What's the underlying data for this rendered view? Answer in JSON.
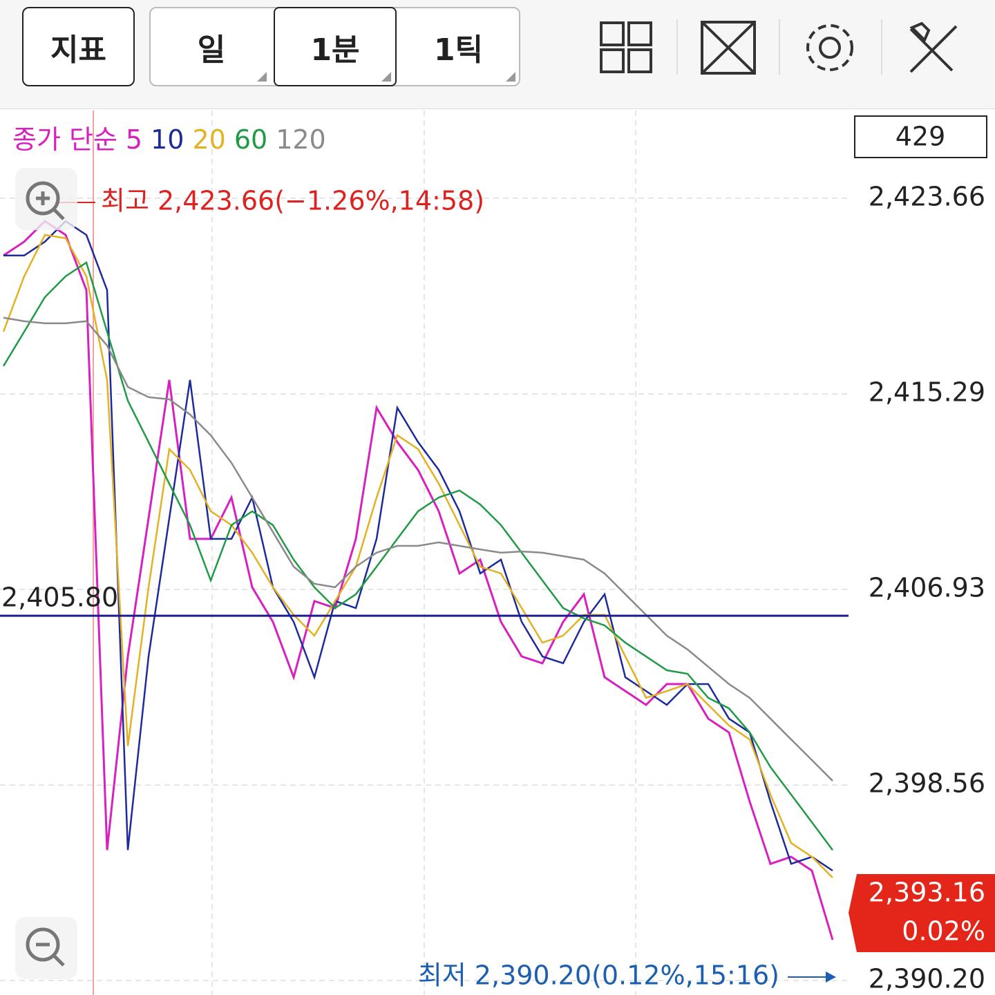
{
  "toolbar": {
    "indicator": "지표",
    "periods": [
      "일",
      "1분",
      "1틱"
    ]
  },
  "count_box": "429",
  "chart_data": {
    "type": "line",
    "legend_prefix": "종가 단순",
    "series": [
      {
        "name": "5",
        "color": "#d81fc0",
        "values": [
          2421.21,
          2421.8,
          2422.68,
          2422.09,
          2419.73,
          2395.78,
          2404.06,
          2409.97,
          2415.89,
          2409.09,
          2409.09,
          2410.86,
          2407.02,
          2405.54,
          2403.17,
          2406.43,
          2406.13,
          2409.09,
          2414.7,
          2413.23,
          2412.04,
          2410.27,
          2407.61,
          2408.2,
          2405.54,
          2404.06,
          2403.77,
          2405.54,
          2406.72,
          2403.17,
          2402.58,
          2401.99,
          2402.88,
          2402.88,
          2401.4,
          2400.81,
          2397.85,
          2395.19,
          2395.49,
          2394.9,
          2391.94
        ]
      },
      {
        "name": "10",
        "color": "#1c2a9c",
        "values": [
          2421.21,
          2421.21,
          2421.8,
          2422.68,
          2422.09,
          2419.73,
          2395.78,
          2404.06,
          2409.97,
          2415.89,
          2409.09,
          2409.09,
          2410.86,
          2407.02,
          2405.54,
          2403.17,
          2406.43,
          2406.13,
          2409.09,
          2414.7,
          2413.23,
          2412.04,
          2410.27,
          2407.61,
          2408.2,
          2405.54,
          2404.06,
          2403.77,
          2405.54,
          2406.72,
          2403.17,
          2402.58,
          2401.99,
          2402.88,
          2402.88,
          2401.4,
          2400.81,
          2397.85,
          2395.19,
          2395.49,
          2394.9
        ]
      },
      {
        "name": "20",
        "color": "#e3b122",
        "values": [
          2417.95,
          2420.32,
          2422.09,
          2421.95,
          2420.32,
          2415.89,
          2400.22,
          2407.02,
          2412.93,
          2412.04,
          2410.27,
          2409.68,
          2408.5,
          2407.02,
          2405.84,
          2404.95,
          2406.43,
          2407.9,
          2410.86,
          2413.52,
          2412.93,
          2411.45,
          2409.68,
          2407.9,
          2407.61,
          2406.13,
          2404.65,
          2404.95,
          2405.84,
          2405.84,
          2404.06,
          2402.29,
          2402.58,
          2402.88,
          2401.99,
          2401.11,
          2400.51,
          2398.15,
          2396.08,
          2395.49,
          2394.6
        ]
      },
      {
        "name": "60",
        "color": "#1f9a45",
        "values": [
          2416.48,
          2417.95,
          2419.43,
          2420.32,
          2420.91,
          2417.95,
          2415.0,
          2413.23,
          2411.45,
          2409.68,
          2407.31,
          2409.68,
          2410.27,
          2409.68,
          2408.2,
          2407.02,
          2406.13,
          2406.72,
          2407.9,
          2409.09,
          2410.27,
          2410.86,
          2411.16,
          2410.56,
          2409.68,
          2408.5,
          2407.31,
          2406.13,
          2405.69,
          2405.39,
          2404.65,
          2404.06,
          2403.47,
          2403.32,
          2402.29,
          2401.84,
          2400.81,
          2399.33,
          2398.15,
          2396.97,
          2395.78
        ]
      },
      {
        "name": "120",
        "color": "#8a8a8a",
        "values": [
          2418.55,
          2418.4,
          2418.31,
          2418.31,
          2418.4,
          2417.36,
          2415.59,
          2415.15,
          2415.06,
          2414.41,
          2413.52,
          2412.34,
          2410.86,
          2409.38,
          2407.9,
          2407.17,
          2407.02,
          2407.9,
          2408.5,
          2408.79,
          2408.79,
          2408.94,
          2408.79,
          2408.64,
          2408.5,
          2408.55,
          2408.5,
          2408.35,
          2408.2,
          2407.61,
          2406.72,
          2405.84,
          2404.95,
          2404.36,
          2403.62,
          2402.88,
          2402.29,
          2401.4,
          2400.51,
          2399.63,
          2398.74
        ]
      }
    ],
    "ylim": [
      2389.58,
      2427.41
    ],
    "yticks": [
      {
        "value": 2423.66,
        "label": "2,423.66"
      },
      {
        "value": 2415.29,
        "label": "2,415.29"
      },
      {
        "value": 2406.93,
        "label": "2,406.93"
      },
      {
        "value": 2398.56,
        "label": "2,398.56"
      },
      {
        "value": 2390.2,
        "label": "2,390.20"
      }
    ],
    "reference_line": {
      "value": 2405.8,
      "label": "2,405.80",
      "color": "#1c1c8c"
    },
    "high_annotation": "최고 2,423.66(−1.26%,14:58)",
    "low_annotation": "최저 2,390.20(0.12%,15:16)",
    "price_box": {
      "price": "2,393.16",
      "change": "0.02%"
    },
    "grid": true
  }
}
